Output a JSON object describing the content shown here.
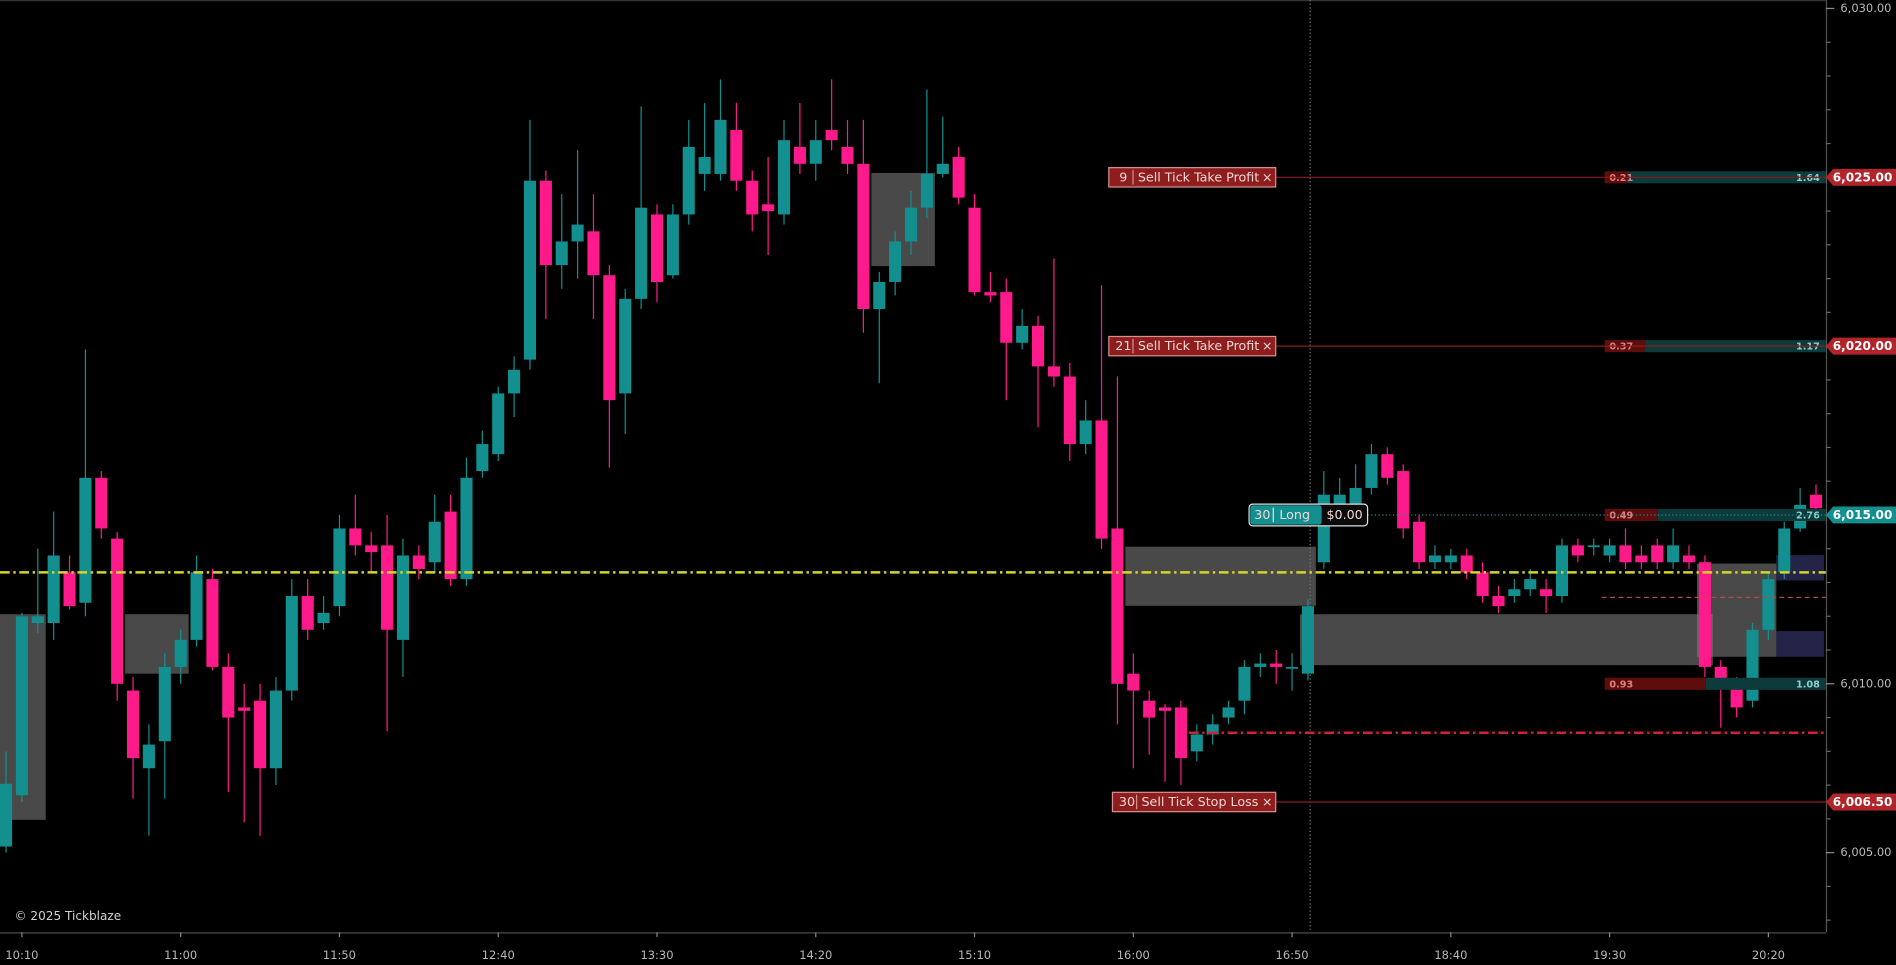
{
  "chart_data": {
    "type": "candlestick",
    "copyright": "© 2025 Tickblaze",
    "close_symbol": "×",
    "up_color": "#138f8f",
    "down_color": "#ff1a8c",
    "categories": [
      null,
      "10:10",
      null,
      null,
      null,
      null,
      null,
      null,
      null,
      null,
      null,
      "11:00",
      null,
      null,
      null,
      null,
      null,
      null,
      null,
      null,
      null,
      "11:50",
      null,
      null,
      null,
      null,
      null,
      null,
      null,
      null,
      null,
      "12:40",
      null,
      null,
      null,
      null,
      null,
      null,
      null,
      null,
      null,
      "13:30",
      null,
      null,
      null,
      null,
      null,
      null,
      null,
      null,
      null,
      "14:20",
      null,
      null,
      null,
      null,
      null,
      null,
      null,
      null,
      null,
      "15:10",
      null,
      null,
      null,
      null,
      null,
      null,
      null,
      null,
      null,
      "16:00",
      null,
      null,
      null,
      null,
      null,
      null,
      null,
      null,
      null,
      "16:50",
      null,
      null,
      null,
      null,
      null,
      null,
      null,
      null,
      null,
      "18:40",
      null,
      null,
      null,
      null,
      null,
      null,
      null,
      null,
      null,
      "19:30",
      null,
      null,
      null,
      null,
      null,
      null,
      null,
      null,
      null,
      "20:20",
      null,
      null,
      null
    ],
    "open": [
      6005.18,
      6006.7,
      6011.8,
      6011.8,
      6013.3,
      6012.4,
      6016.1,
      6014.3,
      6009.8,
      6007.5,
      6008.3,
      6010.5,
      6011.3,
      6013.1,
      6010.5,
      6009.3,
      6009.5,
      6007.5,
      6009.8,
      6012.6,
      6011.8,
      6012.3,
      6014.6,
      6014.1,
      6014.1,
      6011.3,
      6013.8,
      6013.6,
      6015.1,
      6013.1,
      6016.3,
      6016.8,
      6018.6,
      6019.6,
      6024.9,
      6022.4,
      6023.1,
      6023.4,
      6022.1,
      6018.6,
      6021.4,
      6023.9,
      6022.1,
      6023.9,
      6025.1,
      6025.1,
      6026.4,
      6024.9,
      6024.2,
      6023.9,
      6025.9,
      6025.4,
      6026.4,
      6025.9,
      6025.4,
      6021.1,
      6021.9,
      6023.1,
      6024.1,
      6025.1,
      6025.6,
      6024.1,
      6021.6,
      6021.6,
      6020.1,
      6020.6,
      6019.4,
      6019.1,
      6017.1,
      6017.8,
      6014.6,
      6010.3,
      6009.5,
      6009.3,
      6009.3,
      6008.0,
      6008.5,
      6009.0,
      6009.5,
      6010.5,
      6010.6,
      6010.5,
      6010.3,
      6013.6,
      6015.3,
      6015.3,
      6015.8,
      6016.8,
      6016.3,
      6014.8,
      6013.6,
      6013.6,
      6013.8,
      6013.3,
      6012.6,
      6012.6,
      6012.8,
      6012.8,
      6012.6,
      6014.1,
      6014.1,
      6013.8,
      6014.1,
      6013.8,
      6014.1,
      6013.6,
      6013.8,
      6013.6,
      6010.5,
      6010.0,
      6009.5,
      6011.6,
      6013.3,
      6014.6,
      6015.6
    ],
    "high": [
      6008.0,
      6012.1,
      6014.0,
      6015.1,
      6013.8,
      6019.9,
      6016.3,
      6014.5,
      6010.2,
      6008.8,
      6010.9,
      6011.6,
      6013.8,
      6013.4,
      6010.9,
      6010.0,
      6010.0,
      6010.2,
      6013.1,
      6013.1,
      6012.6,
      6015.0,
      6015.6,
      6014.5,
      6015.0,
      6014.3,
      6014.1,
      6015.6,
      6015.6,
      6016.7,
      6017.5,
      6018.8,
      6019.7,
      6026.7,
      6025.2,
      6024.5,
      6025.8,
      6024.5,
      6022.4,
      6021.7,
      6027.1,
      6024.2,
      6024.2,
      6026.7,
      6027.2,
      6027.9,
      6027.2,
      6025.2,
      6025.6,
      6026.7,
      6027.2,
      6026.7,
      6027.9,
      6026.7,
      6026.7,
      6022.2,
      6023.4,
      6024.6,
      6027.6,
      6026.8,
      6025.9,
      6024.5,
      6022.2,
      6022.0,
      6021.1,
      6020.9,
      6022.6,
      6019.5,
      6018.4,
      6021.8,
      6019.1,
      6010.9,
      6009.8,
      6009.4,
      6009.5,
      6008.8,
      6009.1,
      6009.5,
      6010.7,
      6010.9,
      6011.0,
      6010.9,
      6012.5,
      6016.3,
      6016.1,
      6016.5,
      6017.1,
      6017.0,
      6016.5,
      6015.0,
      6014.1,
      6014.0,
      6014.0,
      6013.6,
      6012.9,
      6013.1,
      6013.4,
      6013.1,
      6014.3,
      6014.3,
      6014.3,
      6014.3,
      6014.6,
      6014.1,
      6014.3,
      6014.6,
      6014.1,
      6013.8,
      6010.7,
      6010.2,
      6011.8,
      6013.3,
      6014.8,
      6015.8,
      6015.9
    ],
    "low": [
      6005.0,
      6006.5,
      6011.5,
      6011.3,
      6012.2,
      6012.0,
      6014.3,
      6009.5,
      6006.6,
      6005.5,
      6006.6,
      6010.0,
      6011.1,
      6010.4,
      6006.8,
      6005.9,
      6005.5,
      6007.0,
      6009.5,
      6011.3,
      6011.6,
      6012.0,
      6013.8,
      6013.3,
      6008.6,
      6010.2,
      6013.1,
      6013.3,
      6012.9,
      6012.9,
      6016.1,
      6016.6,
      6017.9,
      6019.3,
      6020.8,
      6021.7,
      6022.0,
      6020.8,
      6016.4,
      6017.4,
      6021.1,
      6021.3,
      6022.0,
      6023.6,
      6024.6,
      6024.9,
      6024.6,
      6023.4,
      6022.7,
      6023.6,
      6025.1,
      6024.9,
      6025.8,
      6025.1,
      6020.4,
      6018.9,
      6021.5,
      6022.7,
      6023.8,
      6025.0,
      6024.2,
      6021.5,
      6021.3,
      6018.4,
      6019.9,
      6017.6,
      6018.8,
      6016.6,
      6016.8,
      6014.0,
      6008.8,
      6007.5,
      6007.9,
      6007.1,
      6007.0,
      6007.7,
      6008.2,
      6008.8,
      6009.1,
      6010.2,
      6010.0,
      6009.8,
      6010.1,
      6013.4,
      6015.0,
      6015.2,
      6015.6,
      6015.9,
      6014.3,
      6013.4,
      6013.4,
      6013.4,
      6013.1,
      6012.4,
      6012.1,
      6012.4,
      6012.6,
      6012.1,
      6012.4,
      6013.6,
      6013.8,
      6013.6,
      6013.4,
      6013.4,
      6013.4,
      6013.4,
      6013.4,
      6010.2,
      6008.7,
      6009.0,
      6009.3,
      6011.3,
      6013.1,
      6014.5,
      6015.0
    ],
    "close": [
      6007.04,
      6012.0,
      6012.0,
      6013.8,
      6012.3,
      6016.1,
      6014.6,
      6010.0,
      6007.8,
      6008.2,
      6010.5,
      6011.3,
      6013.3,
      6010.5,
      6009.0,
      6009.2,
      6007.5,
      6009.8,
      6012.6,
      6011.6,
      6012.1,
      6014.6,
      6014.1,
      6013.9,
      6011.6,
      6013.8,
      6013.4,
      6014.8,
      6013.1,
      6016.1,
      6017.1,
      6018.6,
      6019.3,
      6024.9,
      6022.4,
      6023.1,
      6023.6,
      6022.1,
      6018.4,
      6021.4,
      6024.1,
      6021.9,
      6023.9,
      6025.9,
      6025.6,
      6026.7,
      6024.9,
      6023.9,
      6024.0,
      6026.1,
      6025.4,
      6026.1,
      6026.1,
      6025.4,
      6021.1,
      6021.9,
      6023.1,
      6024.1,
      6025.1,
      6025.4,
      6024.4,
      6021.6,
      6021.5,
      6020.1,
      6020.6,
      6019.4,
      6019.1,
      6017.1,
      6017.8,
      6014.3,
      6010.0,
      6009.8,
      6009.0,
      6009.2,
      6007.8,
      6008.5,
      6008.8,
      6009.3,
      6010.5,
      6010.6,
      6010.5,
      6010.5,
      6012.3,
      6015.6,
      6015.6,
      6015.8,
      6016.8,
      6016.1,
      6014.6,
      6013.6,
      6013.8,
      6013.8,
      6013.3,
      6012.6,
      6012.3,
      6012.8,
      6013.1,
      6012.6,
      6014.1,
      6013.8,
      6014.1,
      6014.1,
      6013.6,
      6013.6,
      6013.6,
      6014.1,
      6013.6,
      6010.5,
      6010.0,
      6009.3,
      6011.6,
      6013.1,
      6014.6,
      6015.3,
      6015.2
    ],
    "ylim": [
      6002.64,
      6030.25
    ],
    "yticks": [
      {
        "value": 6030,
        "label": "6,030.00"
      },
      {
        "value": 6010,
        "label": "6,010.00"
      },
      {
        "value": 6005,
        "label": "6,005.00"
      }
    ],
    "yminor": [
      6003,
      6004,
      6005,
      6006,
      6007,
      6008,
      6009,
      6010,
      6011,
      6012,
      6013,
      6014,
      6015,
      6016,
      6017,
      6018,
      6019,
      6020,
      6021,
      6022,
      6023,
      6024,
      6025,
      6026,
      6027,
      6028,
      6029,
      6030
    ],
    "zones": [
      {
        "from": 0,
        "to": 2,
        "high": 6012.06,
        "low": 6005.97,
        "color": "#7a7a7a"
      },
      {
        "from": 8,
        "to": 11,
        "high": 6012.06,
        "low": 6010.3,
        "color": "#7a7a7a"
      },
      {
        "from": 55,
        "to": 58,
        "high": 6025.13,
        "low": 6022.37,
        "color": "#7a7a7a"
      },
      {
        "from": 71,
        "to": 82,
        "high": 6014.06,
        "low": 6012.31,
        "color": "#7a7a7a"
      },
      {
        "from": 82,
        "to": 107,
        "high": 6012.06,
        "low": 6010.55,
        "color": "#7a7a7a"
      },
      {
        "from": 107,
        "to": 111,
        "high": 6013.56,
        "low": 6010.8,
        "color": "#7a7a7a"
      },
      {
        "from": 112,
        "to": 114,
        "high": 6013.81,
        "low": 6013.06,
        "color": "#3c3c78"
      },
      {
        "from": 112,
        "to": 114,
        "high": 6011.56,
        "low": 6010.8,
        "color": "#3c3c78"
      }
    ],
    "levels": [
      {
        "value": 6013.3,
        "from": 0,
        "color": "#d4d42a",
        "style": "dash-dot"
      },
      {
        "value": 6008.55,
        "from": 75,
        "color": "#d0203a",
        "style": "dash-dot"
      },
      {
        "value": 6012.56,
        "from": 101,
        "color": "#b04848",
        "style": "dashed"
      }
    ],
    "orders": [
      {
        "quantity": 9,
        "label": "Sell Tick Take Profit",
        "price": 6025,
        "price_label": "6,025.00"
      },
      {
        "quantity": 21,
        "label": "Sell Tick Take Profit",
        "price": 6020,
        "price_label": "6,020.00"
      },
      {
        "quantity": 30,
        "label": "Sell Tick Stop Loss",
        "price": 6006.5,
        "price_label": "6,006.50"
      }
    ],
    "position": {
      "quantity": 30,
      "side": "Long",
      "pnl": "$0.00",
      "price": 6015,
      "price_label": "6,015.00"
    },
    "depth": [
      {
        "price": 6025,
        "left": 0.21,
        "right": 1.64
      },
      {
        "price": 6020,
        "left": 0.37,
        "right": 1.17
      },
      {
        "price": 6015,
        "left": 0.49,
        "right": 2.76
      },
      {
        "price": 6010,
        "left": 0.93,
        "right": 1.08
      }
    ]
  }
}
